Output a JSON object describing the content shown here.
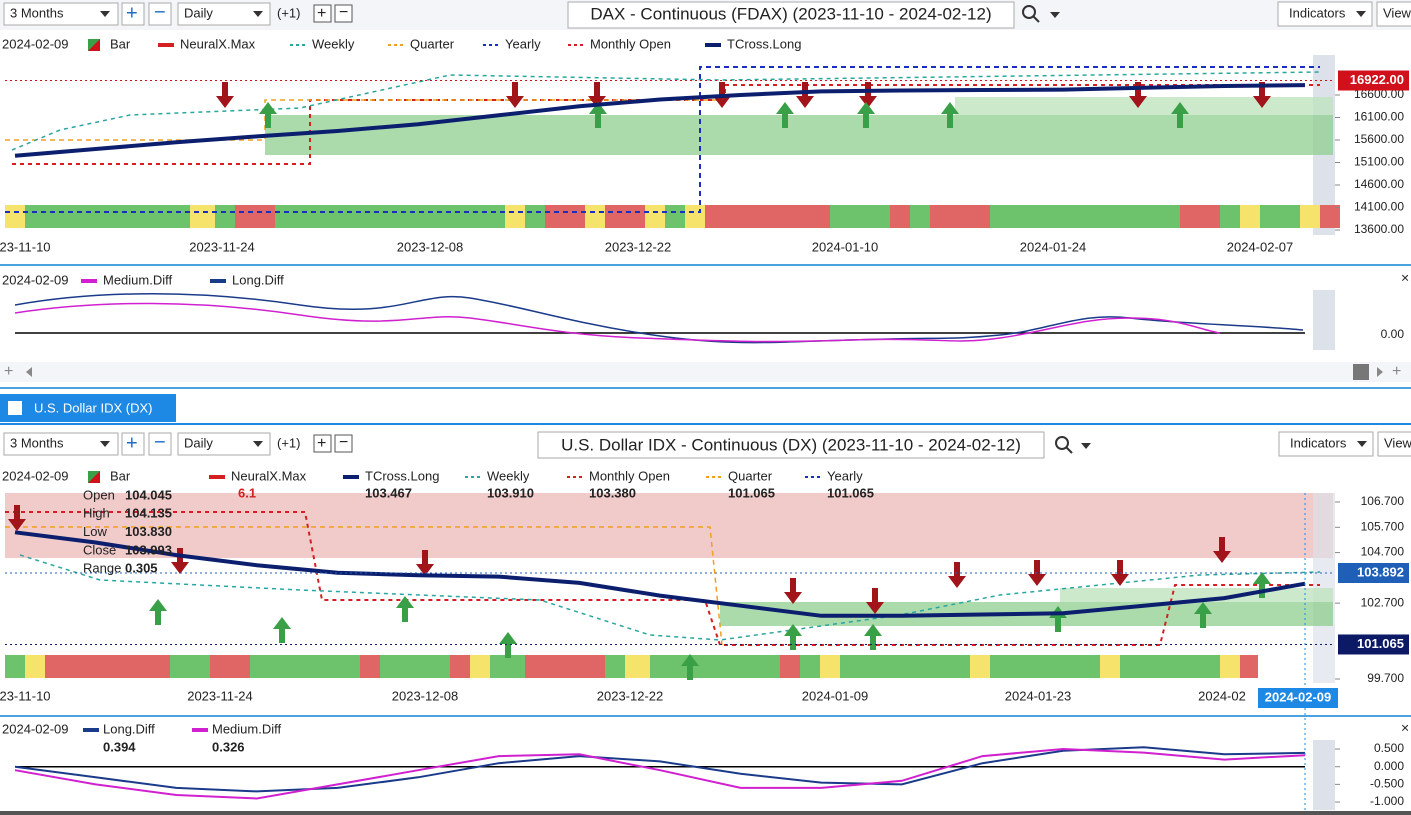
{
  "top_toolbar": {
    "range": "3 Months",
    "interval": "Daily",
    "offset": "(+1)",
    "title": "DAX - Continuous (FDAX) (2023-11-10 - 2024-02-12)",
    "indicators": "Indicators",
    "view": "View"
  },
  "dax_chart": {
    "legend": {
      "date": "2024-02-09",
      "items": [
        "Bar",
        "NeuralX.Max",
        "Weekly",
        "Quarter",
        "Yearly",
        "Monthly Open",
        "TCross.Long"
      ]
    },
    "price_ticks": [
      {
        "value": 16600,
        "label": "16600.00"
      },
      {
        "value": 16100,
        "label": "16100.00"
      },
      {
        "value": 15600,
        "label": "15600.00"
      },
      {
        "value": 15100,
        "label": "15100.00"
      },
      {
        "value": 14600,
        "label": "14600.00"
      },
      {
        "value": 14100,
        "label": "14100.00"
      },
      {
        "value": 13600,
        "label": "13600.00"
      }
    ],
    "last_price": {
      "value": 16922,
      "label": "16922.00"
    },
    "dates": [
      "23-11-10",
      "2023-11-24",
      "2023-12-08",
      "2023-12-22",
      "2024-01-10",
      "2024-01-24",
      "2024-02-07"
    ],
    "tcross_long": {
      "color": "#0b1f6e",
      "values": [
        15250,
        15400,
        15550,
        15680,
        15800,
        15950,
        16150,
        16350,
        16500,
        16600,
        16680,
        16700,
        16710,
        16720,
        16760,
        16800,
        16820
      ]
    }
  },
  "dax_diff": {
    "legend": {
      "date": "2024-02-09",
      "items": [
        "Medium.Diff",
        "Long.Diff"
      ]
    },
    "tick": "0.00"
  },
  "dx_tab": "U.S. Dollar IDX (DX)",
  "dx_toolbar": {
    "range": "3 Months",
    "interval": "Daily",
    "offset": "(+1)",
    "title": "U.S. Dollar IDX - Continuous (DX) (2023-11-10 - 2024-02-12)",
    "indicators": "Indicators",
    "view": "View"
  },
  "dx_chart": {
    "legend": {
      "date": "2024-02-09",
      "bar": "Bar",
      "items": [
        {
          "name": "NeuralX.Max",
          "value": "6.1"
        },
        {
          "name": "TCross.Long",
          "value": "103.467"
        },
        {
          "name": "Weekly",
          "value": "103.910"
        },
        {
          "name": "Monthly Open",
          "value": "103.380"
        },
        {
          "name": "Quarter",
          "value": "101.065"
        },
        {
          "name": "Yearly",
          "value": "101.065"
        }
      ]
    },
    "ohlc": [
      {
        "label": "Open",
        "value": "104.045"
      },
      {
        "label": "High",
        "value": "104.135"
      },
      {
        "label": "Low",
        "value": "103.830"
      },
      {
        "label": "Close",
        "value": "103.993"
      },
      {
        "label": "Range",
        "value": "0.305"
      }
    ],
    "price_ticks": [
      {
        "value": 106.7,
        "label": "106.700"
      },
      {
        "value": 105.7,
        "label": "105.700"
      },
      {
        "value": 104.7,
        "label": "104.700"
      },
      {
        "value": 102.7,
        "label": "102.700"
      },
      {
        "value": 99.7,
        "label": "99.700"
      }
    ],
    "price_labels": [
      {
        "value": 103.892,
        "label": "103.892"
      },
      {
        "value": 101.065,
        "label": "101.065"
      }
    ],
    "dates": [
      "23-11-10",
      "2023-11-24",
      "2023-12-08",
      "2023-12-22",
      "2024-01-09",
      "2024-01-23",
      "2024-02"
    ],
    "cursor_date": "2024-02-09",
    "tcross_long": {
      "color": "#0b1f6e",
      "values": [
        105.5,
        105.1,
        104.6,
        104.2,
        103.9,
        103.8,
        103.75,
        103.5,
        103.0,
        102.6,
        102.2,
        102.2,
        102.25,
        102.3,
        102.6,
        102.9,
        103.47
      ]
    }
  },
  "dx_diff": {
    "legend": {
      "date": "2024-02-09",
      "items": [
        {
          "name": "Long.Diff",
          "value": "0.394"
        },
        {
          "name": "Medium.Diff",
          "value": "0.326"
        }
      ]
    },
    "ticks": [
      {
        "value": 0.5,
        "label": "0.500"
      },
      {
        "value": 0,
        "label": "0.000"
      },
      {
        "value": -0.5,
        "label": "-0.500"
      },
      {
        "value": -1,
        "label": "-1.000"
      }
    ],
    "long_diff": {
      "color": "#1a3a8a",
      "values": [
        0,
        -0.3,
        -0.6,
        -0.7,
        -0.6,
        -0.3,
        0.1,
        0.3,
        0.15,
        -0.2,
        -0.45,
        -0.5,
        0.1,
        0.45,
        0.55,
        0.35,
        0.39
      ]
    },
    "medium_diff": {
      "color": "#d020d0",
      "values": [
        -0.1,
        -0.5,
        -0.8,
        -0.9,
        -0.5,
        -0.1,
        0.3,
        0.35,
        -0.1,
        -0.6,
        -0.6,
        -0.4,
        0.3,
        0.5,
        0.4,
        0.2,
        0.326
      ]
    }
  }
}
